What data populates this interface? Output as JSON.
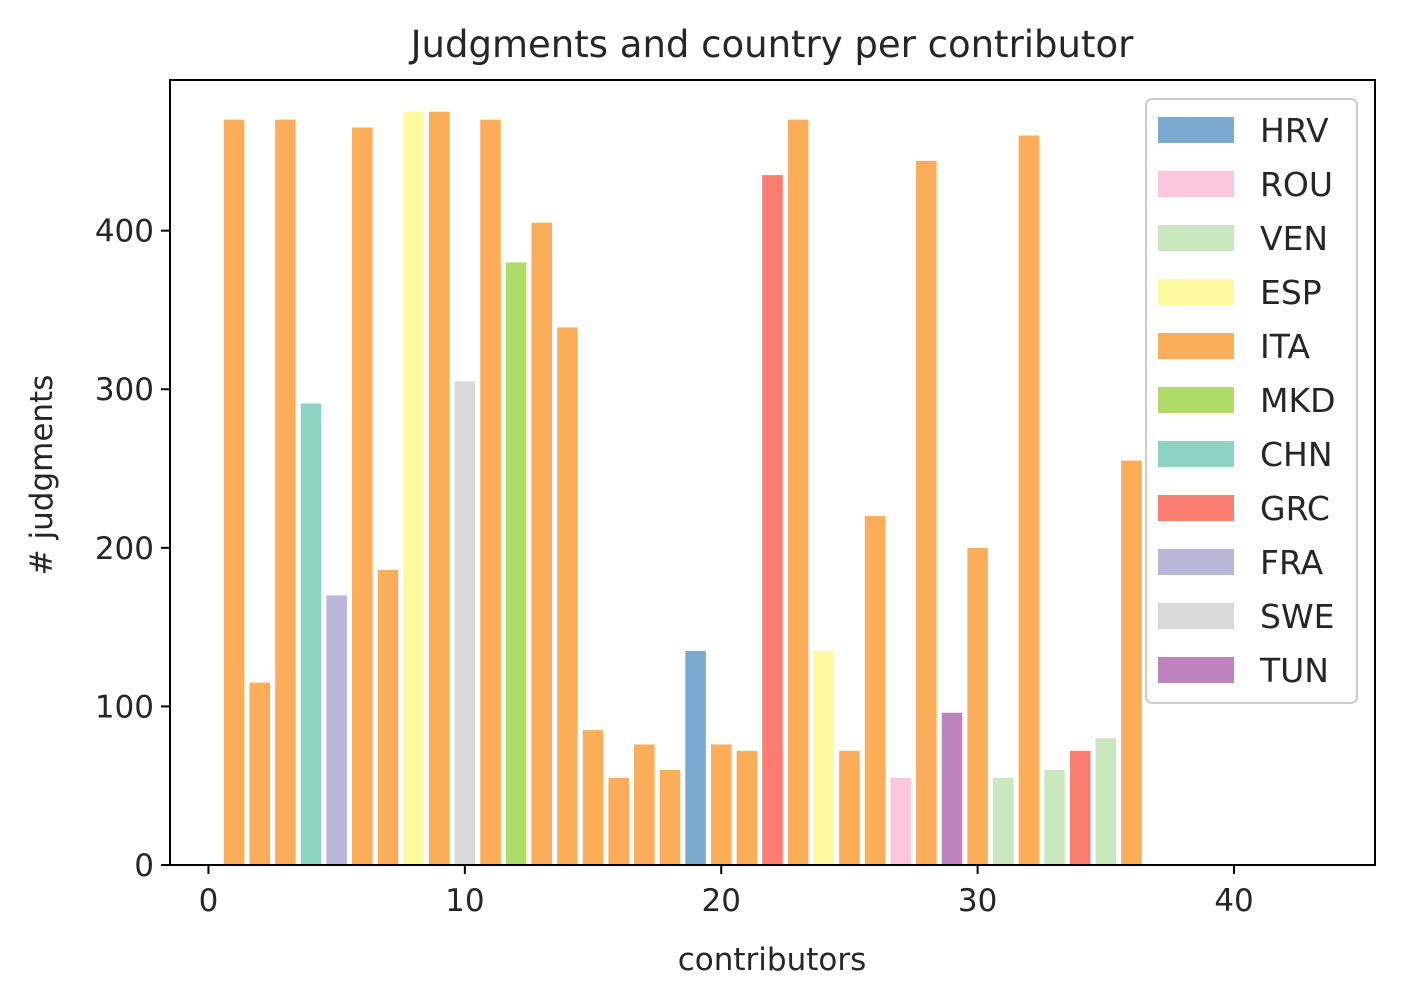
{
  "chart_data": {
    "type": "bar",
    "title": "Judgments and country per contributor",
    "xlabel": "contributors",
    "ylabel": "# judgments",
    "xlim": [
      -1.5,
      45.5
    ],
    "ylim": [
      0,
      495
    ],
    "xticks": [
      0,
      10,
      20,
      30,
      40
    ],
    "yticks": [
      0,
      100,
      200,
      300,
      400
    ],
    "grid": false,
    "legend_placement": "top-right",
    "legend": [
      {
        "name": "HRV",
        "color": "#7ba9d0"
      },
      {
        "name": "ROU",
        "color": "#fbc7df"
      },
      {
        "name": "VEN",
        "color": "#cbe7bf"
      },
      {
        "name": "ESP",
        "color": "#fdfaa0"
      },
      {
        "name": "ITA",
        "color": "#fbad5a"
      },
      {
        "name": "MKD",
        "color": "#b1db68"
      },
      {
        "name": "CHN",
        "color": "#8dd3c4"
      },
      {
        "name": "GRC",
        "color": "#f97d71"
      },
      {
        "name": "FRA",
        "color": "#bab6d9"
      },
      {
        "name": "SWE",
        "color": "#d9d9d9"
      },
      {
        "name": "TUN",
        "color": "#be82bc"
      }
    ],
    "bars": [
      {
        "x": 1,
        "value": 470,
        "country": "ITA"
      },
      {
        "x": 2,
        "value": 115,
        "country": "ITA"
      },
      {
        "x": 3,
        "value": 470,
        "country": "ITA"
      },
      {
        "x": 4,
        "value": 291,
        "country": "CHN"
      },
      {
        "x": 5,
        "value": 170,
        "country": "FRA"
      },
      {
        "x": 6,
        "value": 465,
        "country": "ITA"
      },
      {
        "x": 7,
        "value": 186,
        "country": "ITA"
      },
      {
        "x": 8,
        "value": 475,
        "country": "ESP"
      },
      {
        "x": 9,
        "value": 475,
        "country": "ITA"
      },
      {
        "x": 10,
        "value": 305,
        "country": "SWE"
      },
      {
        "x": 11,
        "value": 470,
        "country": "ITA"
      },
      {
        "x": 12,
        "value": 380,
        "country": "MKD"
      },
      {
        "x": 13,
        "value": 405,
        "country": "ITA"
      },
      {
        "x": 14,
        "value": 339,
        "country": "ITA"
      },
      {
        "x": 15,
        "value": 85,
        "country": "ITA"
      },
      {
        "x": 16,
        "value": 55,
        "country": "ITA"
      },
      {
        "x": 17,
        "value": 76,
        "country": "ITA"
      },
      {
        "x": 18,
        "value": 60,
        "country": "ITA"
      },
      {
        "x": 19,
        "value": 135,
        "country": "HRV"
      },
      {
        "x": 20,
        "value": 76,
        "country": "ITA"
      },
      {
        "x": 21,
        "value": 72,
        "country": "ITA"
      },
      {
        "x": 22,
        "value": 435,
        "country": "GRC"
      },
      {
        "x": 23,
        "value": 470,
        "country": "ITA"
      },
      {
        "x": 24,
        "value": 135,
        "country": "ESP"
      },
      {
        "x": 25,
        "value": 72,
        "country": "ITA"
      },
      {
        "x": 26,
        "value": 220,
        "country": "ITA"
      },
      {
        "x": 27,
        "value": 55,
        "country": "ROU"
      },
      {
        "x": 28,
        "value": 444,
        "country": "ITA"
      },
      {
        "x": 29,
        "value": 96,
        "country": "TUN"
      },
      {
        "x": 30,
        "value": 200,
        "country": "ITA"
      },
      {
        "x": 31,
        "value": 55,
        "country": "VEN"
      },
      {
        "x": 32,
        "value": 460,
        "country": "ITA"
      },
      {
        "x": 33,
        "value": 60,
        "country": "VEN"
      },
      {
        "x": 34,
        "value": 72,
        "country": "GRC"
      },
      {
        "x": 35,
        "value": 80,
        "country": "VEN"
      },
      {
        "x": 36,
        "value": 255,
        "country": "ITA"
      }
    ]
  }
}
